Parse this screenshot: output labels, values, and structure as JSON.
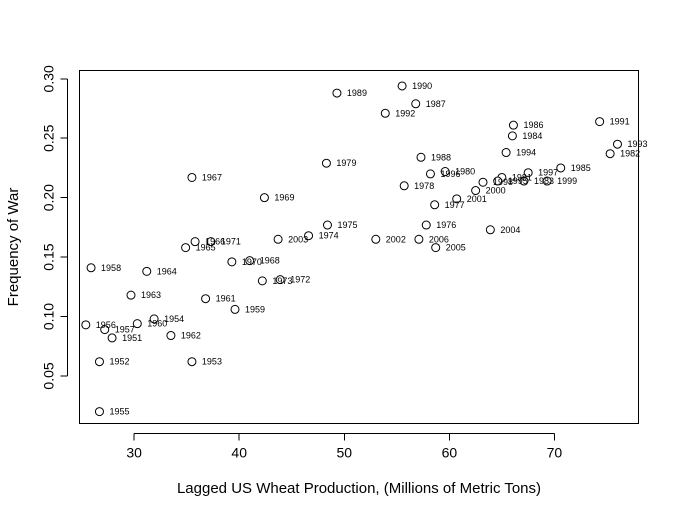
{
  "chart_data": {
    "type": "scatter",
    "title": "",
    "xlabel": "Lagged US Wheat Production, (Millions of Metric Tons)",
    "ylabel": "Frequency of War",
    "xlim": [
      24.8,
      78.0
    ],
    "ylim": [
      0.01,
      0.307
    ],
    "x_ticks": [
      30,
      40,
      50,
      60,
      70
    ],
    "y_ticks": [
      0.05,
      0.1,
      0.15,
      0.2,
      0.25,
      0.3
    ],
    "x_tick_labels": [
      "30",
      "40",
      "50",
      "60",
      "70"
    ],
    "y_tick_labels": [
      "0.05",
      "0.10",
      "0.15",
      "0.20",
      "0.25",
      "0.30"
    ],
    "grid": false,
    "legend": "none",
    "points": [
      {
        "label": "1951",
        "x": 27.9,
        "y": 0.082
      },
      {
        "label": "1952",
        "x": 26.7,
        "y": 0.062
      },
      {
        "label": "1953",
        "x": 35.5,
        "y": 0.062
      },
      {
        "label": "1954",
        "x": 31.9,
        "y": 0.098
      },
      {
        "label": "1955",
        "x": 26.7,
        "y": 0.02
      },
      {
        "label": "1956",
        "x": 25.4,
        "y": 0.093
      },
      {
        "label": "1957",
        "x": 27.2,
        "y": 0.089
      },
      {
        "label": "1958",
        "x": 25.9,
        "y": 0.141
      },
      {
        "label": "1959",
        "x": 39.6,
        "y": 0.106
      },
      {
        "label": "1960",
        "x": 30.3,
        "y": 0.094
      },
      {
        "label": "1961",
        "x": 36.8,
        "y": 0.115
      },
      {
        "label": "1962",
        "x": 33.5,
        "y": 0.084
      },
      {
        "label": "1963",
        "x": 29.7,
        "y": 0.118
      },
      {
        "label": "1964",
        "x": 31.2,
        "y": 0.138
      },
      {
        "label": "1965",
        "x": 34.9,
        "y": 0.158
      },
      {
        "label": "1966",
        "x": 35.8,
        "y": 0.163
      },
      {
        "label": "1967",
        "x": 35.5,
        "y": 0.217
      },
      {
        "label": "1968",
        "x": 41.0,
        "y": 0.147
      },
      {
        "label": "1969",
        "x": 42.4,
        "y": 0.2
      },
      {
        "label": "1970",
        "x": 39.3,
        "y": 0.146
      },
      {
        "label": "1971",
        "x": 37.3,
        "y": 0.163
      },
      {
        "label": "1972",
        "x": 43.9,
        "y": 0.131
      },
      {
        "label": "1973",
        "x": 42.2,
        "y": 0.13
      },
      {
        "label": "1974",
        "x": 46.6,
        "y": 0.168
      },
      {
        "label": "1975",
        "x": 48.4,
        "y": 0.177
      },
      {
        "label": "1976",
        "x": 57.8,
        "y": 0.177
      },
      {
        "label": "1977",
        "x": 58.6,
        "y": 0.194
      },
      {
        "label": "1978",
        "x": 55.7,
        "y": 0.21
      },
      {
        "label": "1979",
        "x": 48.3,
        "y": 0.229
      },
      {
        "label": "1980",
        "x": 59.6,
        "y": 0.222
      },
      {
        "label": "1981",
        "x": 65.0,
        "y": 0.217
      },
      {
        "label": "1982",
        "x": 75.3,
        "y": 0.237
      },
      {
        "label": "1983",
        "x": 67.1,
        "y": 0.214
      },
      {
        "label": "1984",
        "x": 66.0,
        "y": 0.252
      },
      {
        "label": "1985",
        "x": 70.6,
        "y": 0.225
      },
      {
        "label": "1986",
        "x": 66.1,
        "y": 0.261
      },
      {
        "label": "1987",
        "x": 56.8,
        "y": 0.279
      },
      {
        "label": "1988",
        "x": 57.3,
        "y": 0.234
      },
      {
        "label": "1989",
        "x": 49.3,
        "y": 0.288
      },
      {
        "label": "1990",
        "x": 55.5,
        "y": 0.294
      },
      {
        "label": "1991",
        "x": 74.3,
        "y": 0.264
      },
      {
        "label": "1992",
        "x": 53.9,
        "y": 0.271
      },
      {
        "label": "1993",
        "x": 76.0,
        "y": 0.245
      },
      {
        "label": "1994",
        "x": 65.4,
        "y": 0.238
      },
      {
        "label": "1995",
        "x": 64.6,
        "y": 0.214
      },
      {
        "label": "1996",
        "x": 58.2,
        "y": 0.22
      },
      {
        "label": "1997",
        "x": 67.5,
        "y": 0.221
      },
      {
        "label": "1998",
        "x": 63.2,
        "y": 0.213
      },
      {
        "label": "1999",
        "x": 69.3,
        "y": 0.214
      },
      {
        "label": "2000",
        "x": 62.5,
        "y": 0.206
      },
      {
        "label": "2001",
        "x": 60.7,
        "y": 0.199
      },
      {
        "label": "2002",
        "x": 53.0,
        "y": 0.165
      },
      {
        "label": "2003",
        "x": 43.7,
        "y": 0.165
      },
      {
        "label": "2004",
        "x": 63.9,
        "y": 0.173
      },
      {
        "label": "2005",
        "x": 58.7,
        "y": 0.158
      },
      {
        "label": "2006",
        "x": 57.1,
        "y": 0.165
      }
    ]
  }
}
